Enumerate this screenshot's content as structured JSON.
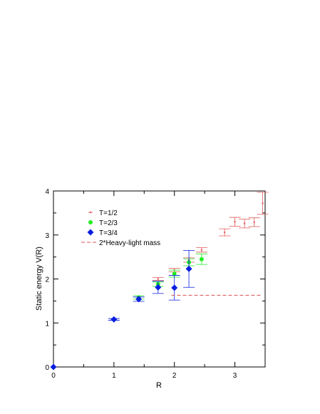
{
  "chart_data": {
    "type": "scatter",
    "title": "",
    "xlabel": "R",
    "ylabel": "Static energy V(R)",
    "xlim": [
      0,
      3.5
    ],
    "ylim": [
      0,
      4
    ],
    "xticks": [
      0,
      1,
      2,
      3
    ],
    "yticks": [
      0,
      1,
      2,
      3,
      4
    ],
    "grid": false,
    "legend_position": "top-left",
    "series": [
      {
        "name": "T=1/2",
        "marker": "small-dot",
        "color": "#e05858",
        "points": [
          {
            "x": 1.73,
            "y": 2.0,
            "err": 0.03
          },
          {
            "x": 2.0,
            "y": 2.2,
            "err": 0.04
          },
          {
            "x": 2.24,
            "y": 2.43,
            "err": 0.05
          },
          {
            "x": 2.45,
            "y": 2.66,
            "err": 0.05
          },
          {
            "x": 2.83,
            "y": 3.06,
            "err": 0.08
          },
          {
            "x": 3.0,
            "y": 3.3,
            "err": 0.1
          },
          {
            "x": 3.16,
            "y": 3.26,
            "err": 0.1
          },
          {
            "x": 3.32,
            "y": 3.29,
            "err": 0.1
          },
          {
            "x": 3.46,
            "y": 3.72,
            "err": 0.25
          }
        ]
      },
      {
        "name": "T=2/3",
        "marker": "circle",
        "color": "#22ee22",
        "points": [
          {
            "x": 1.41,
            "y": 1.58,
            "err": 0.04
          },
          {
            "x": 1.73,
            "y": 1.88,
            "err": 0.05
          },
          {
            "x": 2.0,
            "y": 2.12,
            "err": 0.08
          },
          {
            "x": 2.24,
            "y": 2.38,
            "err": 0.08
          },
          {
            "x": 2.45,
            "y": 2.45,
            "err": 0.12
          }
        ]
      },
      {
        "name": "T=3/4",
        "marker": "diamond",
        "color": "#0a1ee0",
        "points": [
          {
            "x": 0.0,
            "y": 0.0,
            "err": 0.0
          },
          {
            "x": 1.0,
            "y": 1.08,
            "err": 0.02
          },
          {
            "x": 1.41,
            "y": 1.54,
            "err": 0.05
          },
          {
            "x": 1.73,
            "y": 1.81,
            "err": 0.14
          },
          {
            "x": 2.0,
            "y": 1.8,
            "err": 0.28
          },
          {
            "x": 2.24,
            "y": 2.23,
            "err": 0.42
          }
        ]
      },
      {
        "name": "2*Heavy-light mass",
        "marker": "dashed-line",
        "color": "#d85050",
        "points": [
          {
            "x": 1.95,
            "y": 1.63
          },
          {
            "x": 3.45,
            "y": 1.63
          }
        ]
      }
    ]
  }
}
